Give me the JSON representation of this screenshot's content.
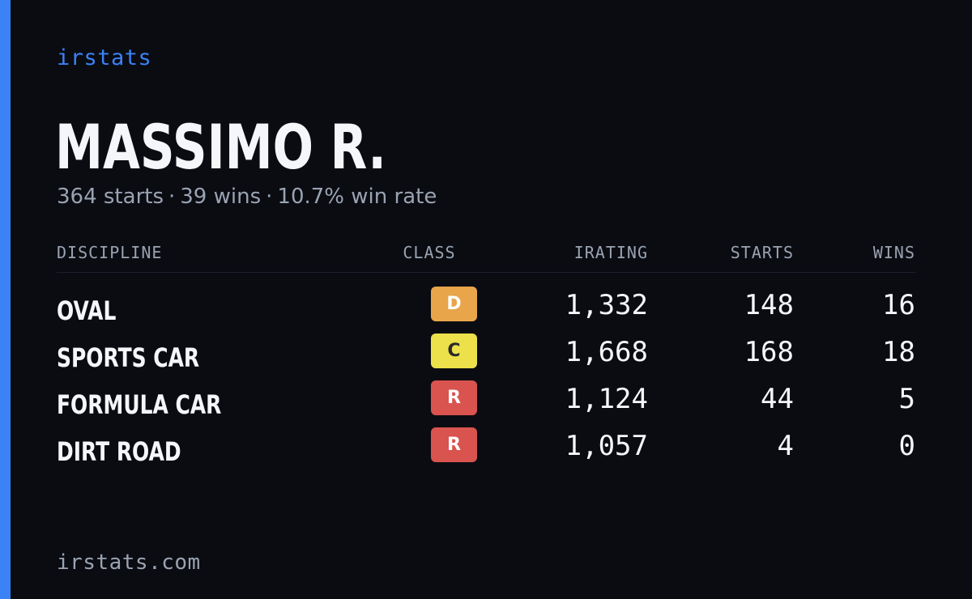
{
  "brand": "irstats",
  "driver": {
    "name": "MASSIMO R."
  },
  "summary": {
    "starts": "364 starts",
    "wins": "39 wins",
    "win_rate": "10.7% win rate",
    "separator": "·"
  },
  "table": {
    "headers": {
      "discipline": "DISCIPLINE",
      "class": "CLASS",
      "irating": "IRATING",
      "starts": "STARTS",
      "wins": "WINS"
    },
    "rows": [
      {
        "discipline": "OVAL",
        "class": "D",
        "class_bg": "#e8a54a",
        "class_fg": "#ffffff",
        "irating": "1,332",
        "starts": "148",
        "wins": "16"
      },
      {
        "discipline": "SPORTS CAR",
        "class": "C",
        "class_bg": "#ece14a",
        "class_fg": "#2a2a2a",
        "irating": "1,668",
        "starts": "168",
        "wins": "18"
      },
      {
        "discipline": "FORMULA CAR",
        "class": "R",
        "class_bg": "#d9534f",
        "class_fg": "#ffffff",
        "irating": "1,124",
        "starts": "44",
        "wins": "5"
      },
      {
        "discipline": "DIRT ROAD",
        "class": "R",
        "class_bg": "#d9534f",
        "class_fg": "#ffffff",
        "irating": "1,057",
        "starts": "4",
        "wins": "0"
      }
    ]
  },
  "footer": {
    "url": "irstats.com"
  },
  "colors": {
    "accent": "#3b82f6",
    "background": "#0a0c12",
    "muted_text": "#9aa3b2",
    "primary_text": "#f4f6fa"
  }
}
